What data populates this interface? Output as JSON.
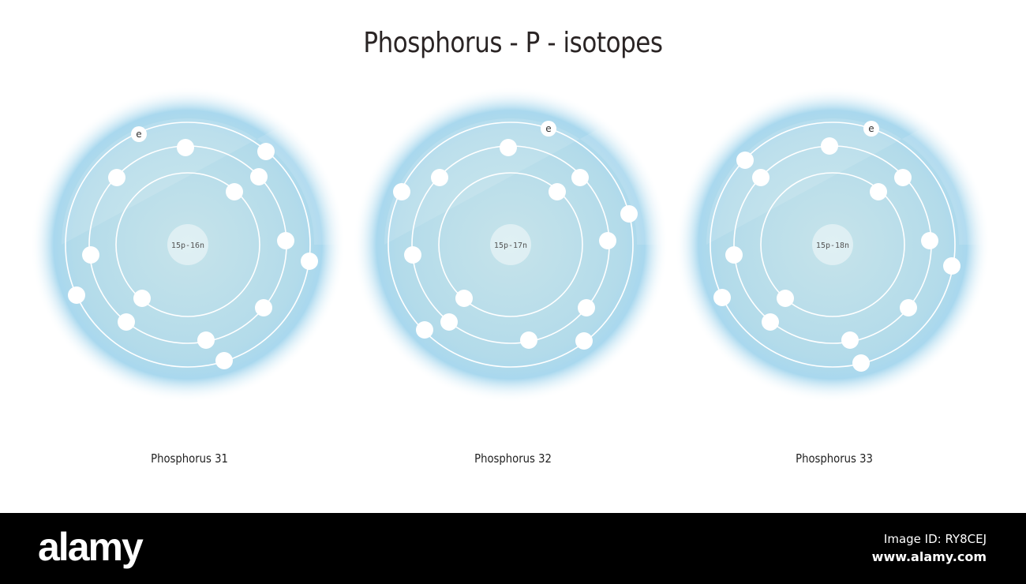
{
  "title": "Phosphorus - P - isotopes",
  "shell_electrons": [
    2,
    8,
    5
  ],
  "electron_symbol": "e",
  "colors": {
    "glow": "#a9d8ee",
    "disc": "#c6e3ea",
    "orbit": "#ffffff",
    "electron": "#ffffff"
  },
  "isotopes": [
    {
      "name": "Phosphorus 31",
      "nucleus": "15p-16n"
    },
    {
      "name": "Phosphorus 32",
      "nucleus": "15p-17n"
    },
    {
      "name": "Phosphorus 33",
      "nucleus": "15p-18n"
    }
  ],
  "footer": {
    "logo": "alamy",
    "image_id": "Image ID: RY8CEJ",
    "site": "www.alamy.com"
  }
}
